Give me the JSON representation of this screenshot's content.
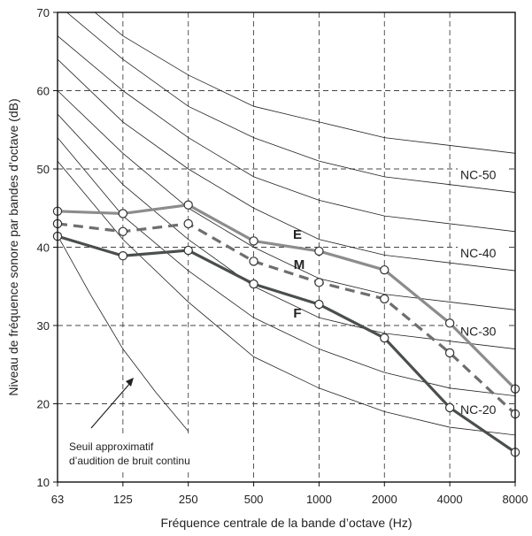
{
  "chart_data": {
    "type": "line",
    "xlabel": "Fréquence centrale de la bande d’octave (Hz)",
    "ylabel": "Niveau de fréquence sonore par bandes d’octave (dB)",
    "categories": [
      "63",
      "125",
      "250",
      "500",
      "1000",
      "2000",
      "4000",
      "8000"
    ],
    "ylim": [
      10,
      70
    ],
    "yticks": [
      "10",
      "20",
      "30",
      "40",
      "50",
      "60",
      "70"
    ],
    "grid": "dashed",
    "nc_curves": [
      {
        "level": 20,
        "values": [
          51,
          41,
          33,
          26,
          22,
          19,
          17,
          16
        ]
      },
      {
        "level": 25,
        "values": [
          54,
          44,
          37,
          31,
          27,
          24,
          22,
          21
        ]
      },
      {
        "level": 30,
        "values": [
          57,
          48,
          41,
          35,
          31,
          29,
          28,
          27
        ]
      },
      {
        "level": 35,
        "values": [
          60,
          52,
          45,
          40,
          36,
          34,
          33,
          32
        ]
      },
      {
        "level": 40,
        "values": [
          64,
          56,
          50,
          45,
          41,
          39,
          38,
          37
        ]
      },
      {
        "level": 45,
        "values": [
          67,
          60,
          54,
          49,
          46,
          44,
          43,
          42
        ]
      },
      {
        "level": 50,
        "values": [
          71,
          64,
          58,
          54,
          51,
          49,
          48,
          47
        ]
      },
      {
        "level": 55,
        "values": [
          74,
          67,
          62,
          58,
          56,
          54,
          53,
          52
        ]
      }
    ],
    "nc_labels": [
      {
        "text": "NC-50",
        "y": 48.9
      },
      {
        "text": "NC-40",
        "y": 38.9
      },
      {
        "text": "NC-30",
        "y": 28.9
      },
      {
        "text": "NC-20",
        "y": 18.9
      }
    ],
    "threshold_curve": {
      "label_lines": [
        "Seuil approximatif",
        "d’audition de bruit continu"
      ],
      "points": [
        [
          0,
          41.5
        ],
        [
          0.5,
          34
        ],
        [
          1,
          27
        ],
        [
          1.5,
          21.5
        ],
        [
          2,
          16.5
        ]
      ]
    },
    "series": [
      {
        "name": "E",
        "style": "solid",
        "color": "#8c8c8c",
        "values": [
          44.6,
          44.3,
          45.4,
          40.8,
          39.5,
          37.1,
          30.3,
          21.9
        ]
      },
      {
        "name": "M",
        "style": "dashed",
        "color": "#6e6e6e",
        "values": [
          43.0,
          42.0,
          43.0,
          38.2,
          35.5,
          33.4,
          26.5,
          18.7
        ]
      },
      {
        "name": "F",
        "style": "solid",
        "color": "#4a4f4c",
        "values": [
          41.4,
          38.9,
          39.6,
          35.3,
          32.7,
          28.4,
          19.5,
          13.8
        ]
      }
    ]
  }
}
